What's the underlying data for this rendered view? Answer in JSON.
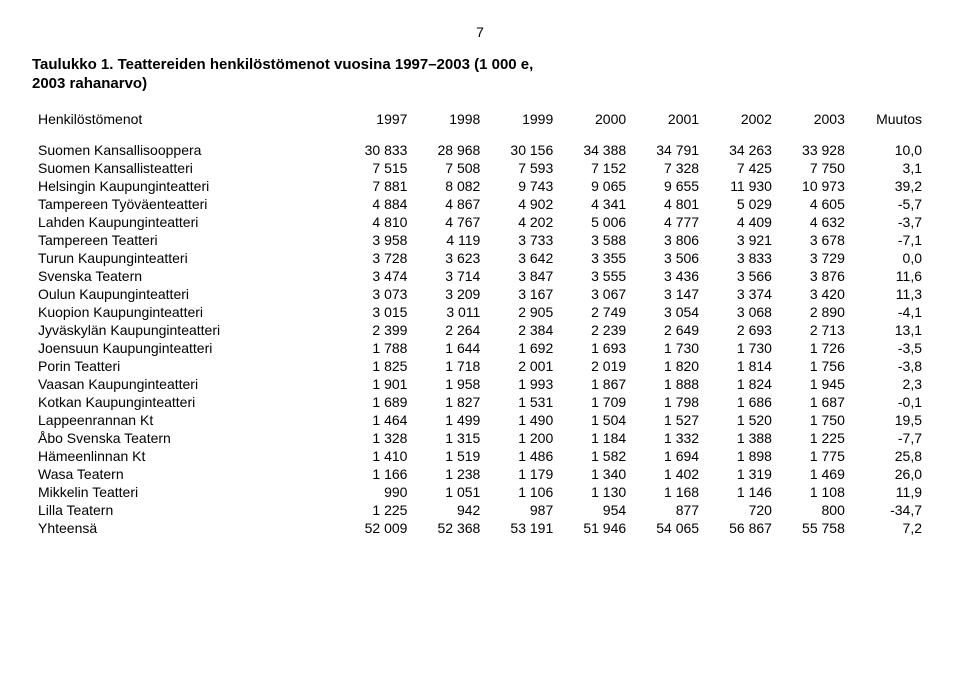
{
  "page_number": "7",
  "title_line1": "Taulukko 1. Teattereiden henkilöstömenot vuosina 1997–2003 (1 000 e,",
  "title_line2": "2003 rahanarvo)",
  "row_header_label": "Henkilöstömenot",
  "columns": [
    "1997",
    "1998",
    "1999",
    "2000",
    "2001",
    "2002",
    "2003",
    "Muutos"
  ],
  "rows": [
    {
      "name": "Suomen Kansallisooppera",
      "v": [
        "30 833",
        "28 968",
        "30 156",
        "34 388",
        "34 791",
        "34 263",
        "33 928",
        "10,0"
      ]
    },
    {
      "name": "Suomen Kansallisteatteri",
      "v": [
        "7 515",
        "7 508",
        "7 593",
        "7 152",
        "7 328",
        "7 425",
        "7 750",
        "3,1"
      ]
    },
    {
      "name": "Helsingin Kaupunginteatteri",
      "v": [
        "7 881",
        "8 082",
        "9 743",
        "9 065",
        "9 655",
        "11 930",
        "10 973",
        "39,2"
      ]
    },
    {
      "name": "Tampereen Työväenteatteri",
      "v": [
        "4 884",
        "4 867",
        "4 902",
        "4 341",
        "4 801",
        "5 029",
        "4 605",
        "-5,7"
      ]
    },
    {
      "name": "Lahden Kaupunginteatteri",
      "v": [
        "4 810",
        "4 767",
        "4 202",
        "5 006",
        "4 777",
        "4 409",
        "4 632",
        "-3,7"
      ]
    },
    {
      "name": "Tampereen Teatteri",
      "v": [
        "3 958",
        "4 119",
        "3 733",
        "3 588",
        "3 806",
        "3 921",
        "3 678",
        "-7,1"
      ]
    },
    {
      "name": "Turun Kaupunginteatteri",
      "v": [
        "3 728",
        "3 623",
        "3 642",
        "3 355",
        "3 506",
        "3 833",
        "3 729",
        "0,0"
      ]
    },
    {
      "name": "Svenska Teatern",
      "v": [
        "3 474",
        "3 714",
        "3 847",
        "3 555",
        "3 436",
        "3 566",
        "3 876",
        "11,6"
      ]
    },
    {
      "name": "Oulun Kaupunginteatteri",
      "v": [
        "3 073",
        "3 209",
        "3 167",
        "3 067",
        "3 147",
        "3 374",
        "3 420",
        "11,3"
      ]
    },
    {
      "name": "Kuopion Kaupunginteatteri",
      "v": [
        "3 015",
        "3 011",
        "2 905",
        "2 749",
        "3 054",
        "3 068",
        "2 890",
        "-4,1"
      ]
    },
    {
      "name": "Jyväskylän Kaupunginteatteri",
      "v": [
        "2 399",
        "2 264",
        "2 384",
        "2 239",
        "2 649",
        "2 693",
        "2 713",
        "13,1"
      ]
    },
    {
      "name": "Joensuun Kaupunginteatteri",
      "v": [
        "1 788",
        "1 644",
        "1 692",
        "1 693",
        "1 730",
        "1 730",
        "1 726",
        "-3,5"
      ]
    },
    {
      "name": "Porin Teatteri",
      "v": [
        "1 825",
        "1 718",
        "2 001",
        "2 019",
        "1 820",
        "1 814",
        "1 756",
        "-3,8"
      ]
    },
    {
      "name": "Vaasan Kaupunginteatteri",
      "v": [
        "1 901",
        "1 958",
        "1 993",
        "1 867",
        "1 888",
        "1 824",
        "1 945",
        "2,3"
      ]
    },
    {
      "name": "Kotkan Kaupunginteatteri",
      "v": [
        "1 689",
        "1 827",
        "1 531",
        "1 709",
        "1 798",
        "1 686",
        "1 687",
        "-0,1"
      ]
    },
    {
      "name": "Lappeenrannan Kt",
      "v": [
        "1 464",
        "1 499",
        "1 490",
        "1 504",
        "1 527",
        "1 520",
        "1 750",
        "19,5"
      ]
    },
    {
      "name": "Åbo Svenska Teatern",
      "v": [
        "1 328",
        "1 315",
        "1 200",
        "1 184",
        "1 332",
        "1 388",
        "1 225",
        "-7,7"
      ]
    },
    {
      "name": "Hämeenlinnan Kt",
      "v": [
        "1 410",
        "1 519",
        "1 486",
        "1 582",
        "1 694",
        "1 898",
        "1 775",
        "25,8"
      ]
    },
    {
      "name": "Wasa Teatern",
      "v": [
        "1 166",
        "1 238",
        "1 179",
        "1 340",
        "1 402",
        "1 319",
        "1 469",
        "26,0"
      ]
    },
    {
      "name": "Mikkelin Teatteri",
      "v": [
        "990",
        "1 051",
        "1 106",
        "1 130",
        "1 168",
        "1 146",
        "1 108",
        "11,9"
      ]
    },
    {
      "name": "Lilla Teatern",
      "v": [
        "1 225",
        "942",
        "987",
        "954",
        "877",
        "720",
        "800",
        "-34,7"
      ]
    },
    {
      "name": "Yhteensä",
      "v": [
        "52 009",
        "52 368",
        "53 191",
        "51 946",
        "54 065",
        "56 867",
        "55 758",
        "7,2"
      ]
    }
  ]
}
